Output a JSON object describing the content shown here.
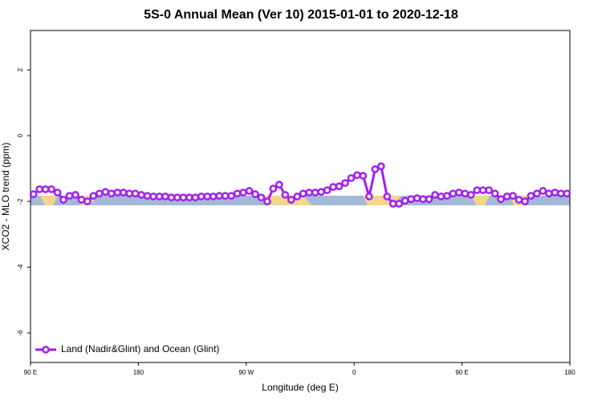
{
  "chart_data": {
    "type": "line",
    "title": "5S-0 Annual Mean (Ver 10)   2015-01-01 to 2020-12-18",
    "x_label": "Longitude (deg E)",
    "y_label": "XCO2 - MLO trend (ppm)",
    "xlim": [
      -270,
      180
    ],
    "xticks": [
      {
        "value": -270,
        "label": "90 E"
      },
      {
        "value": -180,
        "label": "180"
      },
      {
        "value": -90,
        "label": "90 W"
      },
      0,
      {
        "value": 90,
        "label": "90 E"
      },
      180
    ],
    "ylim": [
      -6.9,
      3.2
    ],
    "yticks": [
      -6,
      -4,
      -2,
      0,
      2
    ],
    "legend": "bottom-left",
    "x": [
      -267.5,
      -262.5,
      -257.5,
      -252.5,
      -247.5,
      -242.5,
      -237.5,
      -232.5,
      -227.5,
      -222.5,
      -217.5,
      -212.5,
      -207.5,
      -202.5,
      -197.5,
      -192.5,
      -187.5,
      -182.5,
      -177.5,
      -172.5,
      -167.5,
      -162.5,
      -157.5,
      -152.5,
      -147.5,
      -142.5,
      -137.5,
      -132.5,
      -127.5,
      -122.5,
      -117.5,
      -112.5,
      -107.5,
      -102.5,
      -97.5,
      -92.5,
      -87.5,
      -82.5,
      -77.5,
      -72.5,
      -67.5,
      -62.5,
      -57.5,
      -52.5,
      -47.5,
      -42.5,
      -37.5,
      -32.5,
      -27.5,
      -22.5,
      -17.5,
      -12.5,
      -7.5,
      -2.5,
      2.5,
      7.5,
      12.5,
      17.5,
      22.5,
      27.5,
      32.5,
      37.5,
      42.5,
      47.5,
      52.5,
      57.5,
      62.5,
      67.5,
      72.5,
      77.5,
      82.5,
      87.5,
      92.5,
      97.5,
      102.5,
      107.5,
      112.5,
      117.5,
      122.5,
      127.5,
      132.5,
      137.5,
      142.5,
      147.5,
      152.5,
      157.5,
      162.5,
      167.5,
      172.5,
      177.5
    ],
    "series": [
      {
        "name": "Land (Nadir&Glint) and Ocean (Glint)",
        "color": "#a020f0",
        "values": [
          -1.78,
          -1.63,
          -1.63,
          -1.63,
          -1.73,
          -1.95,
          -1.83,
          -1.8,
          -1.95,
          -2.0,
          -1.83,
          -1.76,
          -1.71,
          -1.76,
          -1.73,
          -1.73,
          -1.76,
          -1.76,
          -1.8,
          -1.83,
          -1.85,
          -1.85,
          -1.85,
          -1.88,
          -1.88,
          -1.88,
          -1.88,
          -1.88,
          -1.85,
          -1.85,
          -1.85,
          -1.83,
          -1.83,
          -1.83,
          -1.76,
          -1.73,
          -1.68,
          -1.78,
          -1.88,
          -2.0,
          -1.61,
          -1.49,
          -1.8,
          -1.95,
          -1.85,
          -1.76,
          -1.73,
          -1.73,
          -1.71,
          -1.66,
          -1.56,
          -1.54,
          -1.44,
          -1.29,
          -1.2,
          -1.22,
          -1.85,
          -1.02,
          -0.93,
          -1.85,
          -2.07,
          -2.07,
          -1.98,
          -1.93,
          -1.9,
          -1.93,
          -1.93,
          -1.8,
          -1.85,
          -1.83,
          -1.76,
          -1.73,
          -1.76,
          -1.8,
          -1.66,
          -1.66,
          -1.66,
          -1.76,
          -1.93,
          -1.85,
          -1.83,
          -1.95,
          -2.0,
          -1.83,
          -1.76,
          -1.68,
          -1.76,
          -1.73,
          -1.76,
          -1.76
        ]
      }
    ]
  }
}
